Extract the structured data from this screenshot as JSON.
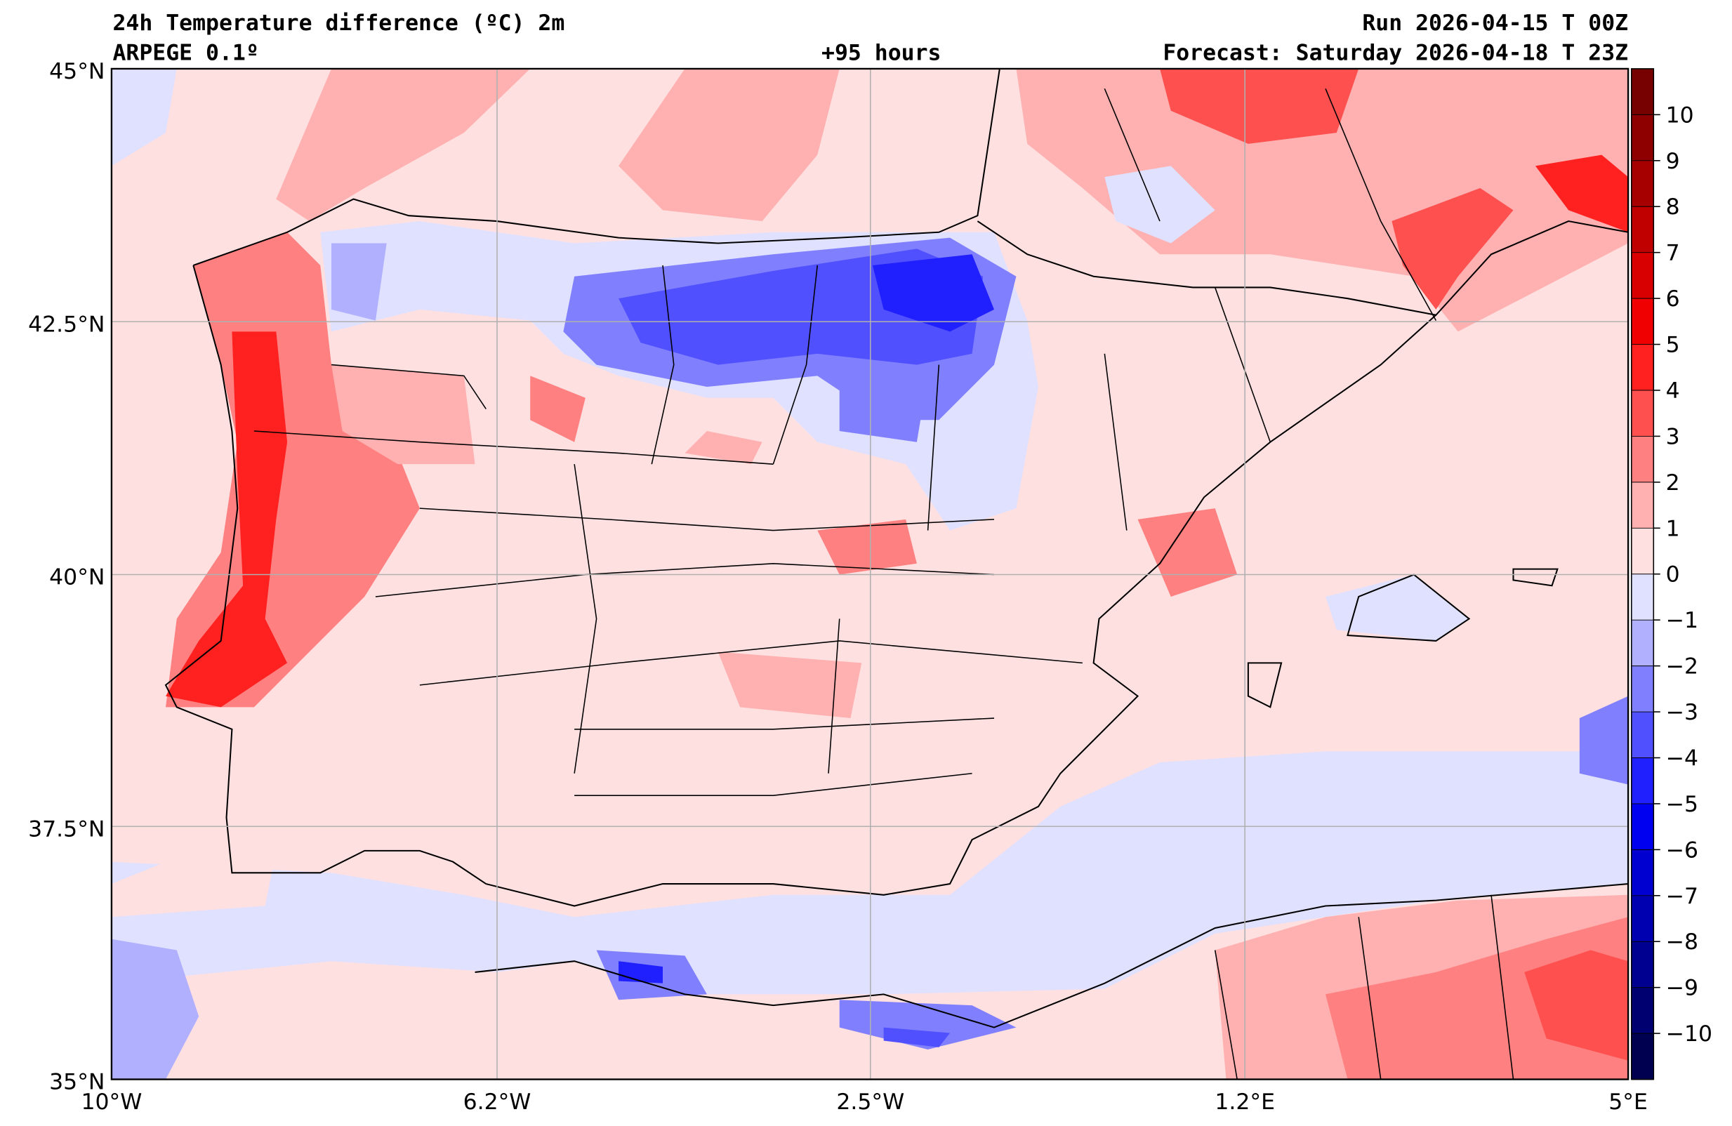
{
  "header": {
    "title": "24h Temperature difference (ºC) 2m",
    "model": "ARPEGE 0.1º",
    "lead_time": "+95 hours",
    "run": "Run 2026-04-15 T 00Z",
    "forecast": "Forecast: Saturday 2026-04-18 T 23Z"
  },
  "axes": {
    "lat_labels": [
      "45°N",
      "42.5°N",
      "40°N",
      "37.5°N",
      "35°N"
    ],
    "lon_labels": [
      "10°W",
      "6.2°W",
      "2.5°W",
      "1.2°E",
      "5°E"
    ]
  },
  "colorbar": {
    "ticks": [
      "10",
      "9",
      "8",
      "7",
      "6",
      "5",
      "4",
      "3",
      "2",
      "1",
      "0",
      "−1",
      "−2",
      "−3",
      "−4",
      "−5",
      "−6",
      "−7",
      "−8",
      "−9",
      "−10"
    ],
    "levels_min": -11,
    "levels_max": 11,
    "colors": [
      "#770000",
      "#8e0000",
      "#a60000",
      "#c00000",
      "#d80000",
      "#f00000",
      "#ff2020",
      "#ff5050",
      "#ff8080",
      "#ffb0b0",
      "#ffe0e0",
      "#e0e0ff",
      "#b0b0ff",
      "#8080ff",
      "#5050ff",
      "#2020ff",
      "#0000f0",
      "#0000d0",
      "#0000b0",
      "#000090",
      "#000070",
      "#000050"
    ]
  }
}
